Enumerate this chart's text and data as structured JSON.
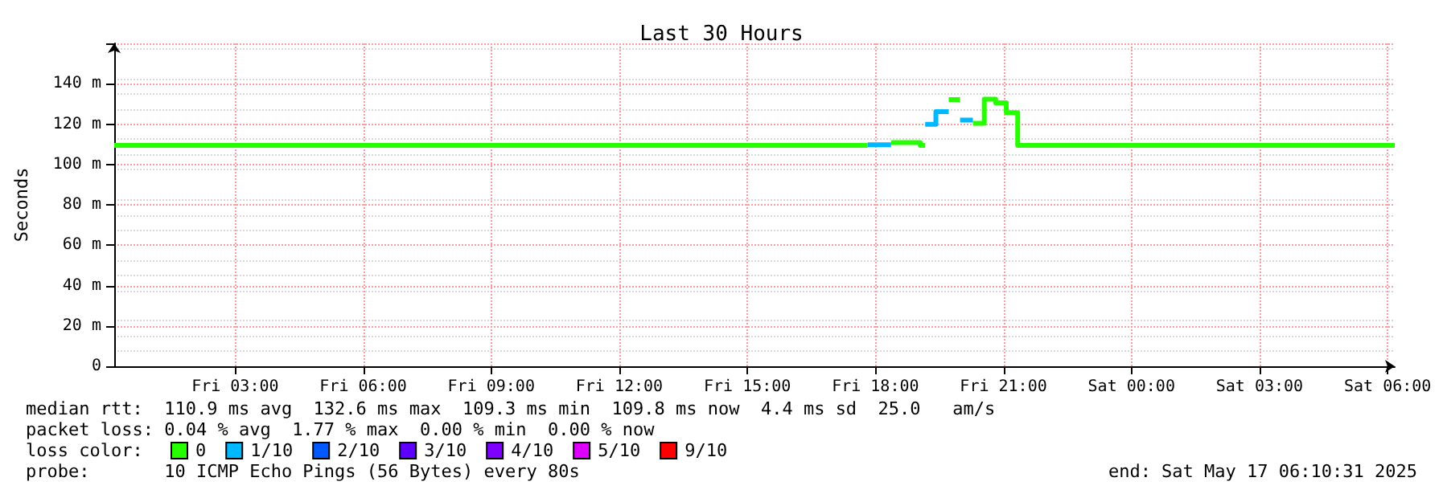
{
  "chart_data": {
    "type": "step",
    "title": "Last 30 Hours",
    "ylabel": "Seconds",
    "legend_title": "loss color:",
    "xlim": [
      "2025-05-16T00:10",
      "2025-05-17T06:10"
    ],
    "xticks": [
      {
        "value": "2025-05-16T03:00",
        "label": "Fri 03:00"
      },
      {
        "value": "2025-05-16T06:00",
        "label": "Fri 06:00"
      },
      {
        "value": "2025-05-16T09:00",
        "label": "Fri 09:00"
      },
      {
        "value": "2025-05-16T12:00",
        "label": "Fri 12:00"
      },
      {
        "value": "2025-05-16T15:00",
        "label": "Fri 15:00"
      },
      {
        "value": "2025-05-16T18:00",
        "label": "Fri 18:00"
      },
      {
        "value": "2025-05-16T21:00",
        "label": "Fri 21:00"
      },
      {
        "value": "2025-05-17T00:00",
        "label": "Sat 00:00"
      },
      {
        "value": "2025-05-17T03:00",
        "label": "Sat 03:00"
      },
      {
        "value": "2025-05-17T06:00",
        "label": "Sat 06:00"
      }
    ],
    "ylim": [
      0,
      160
    ],
    "yticks": [
      0,
      {
        "value": 20,
        "label": "20 m"
      },
      {
        "value": 40,
        "label": "40 m"
      },
      {
        "value": 60,
        "label": "60 m"
      },
      {
        "value": 80,
        "label": "80 m"
      },
      {
        "value": 100,
        "label": "100 m"
      },
      {
        "value": 120,
        "label": "120 m"
      },
      {
        "value": 140,
        "label": "140 m"
      },
      {
        "value": 160,
        "label": null
      }
    ],
    "grid": true,
    "legend": "bottom left",
    "series": [
      {
        "name": "0",
        "color": "#26ff00",
        "x": [
          "2025-05-16T00:10",
          "2025-05-16T17:49",
          "2025-05-16T17:50",
          "2025-05-16T18:22",
          "2025-05-16T19:03",
          "2025-05-16T19:10",
          "2025-05-16T19:11",
          "2025-05-16T19:43",
          "2025-05-16T19:59",
          "2025-05-16T20:00",
          "2025-05-16T20:17",
          "2025-05-16T20:33",
          "2025-05-16T20:49",
          "2025-05-16T21:04",
          "2025-05-16T21:20",
          "2025-05-17T06:10"
        ],
        "values": [
          109.5,
          109.5,
          null,
          110.8,
          109.5,
          109.5,
          null,
          132.1,
          132.1,
          null,
          120.4,
          132.3,
          130.5,
          125.7,
          109.5,
          109.5
        ]
      },
      {
        "name": "1/10",
        "color": "#00b8ff",
        "x": [
          "2025-05-16T17:49",
          "2025-05-16T18:22",
          "2025-05-16T18:23",
          "2025-05-16T19:10",
          "2025-05-16T19:25",
          "2025-05-16T19:43",
          "2025-05-16T19:44",
          "2025-05-16T19:59",
          "2025-05-16T20:17"
        ],
        "values": [
          109.8,
          109.8,
          null,
          119.9,
          126.2,
          126.2,
          null,
          122.0,
          122.0
        ]
      },
      {
        "name": "2/10",
        "color": "#0059ff"
      },
      {
        "name": "3/10",
        "color": "#5e00ff"
      },
      {
        "name": "4/10",
        "color": "#7e00ff"
      },
      {
        "name": "5/10",
        "color": "#dd00ff"
      },
      {
        "name": "9/10",
        "color": "#ff0000"
      }
    ],
    "annotations": [
      "median rtt:  110.9 ms avg  132.6 ms max  109.3 ms min  109.8 ms now  4.4 ms sd  25.0   am/s",
      "packet loss: 0.04 % avg  1.77 % max  0.00 % min  0.00 % now",
      "probe:       10 ICMP Echo Pings (56 Bytes) every 80s",
      "end: Sat May 17 06:10:31 2025"
    ]
  }
}
